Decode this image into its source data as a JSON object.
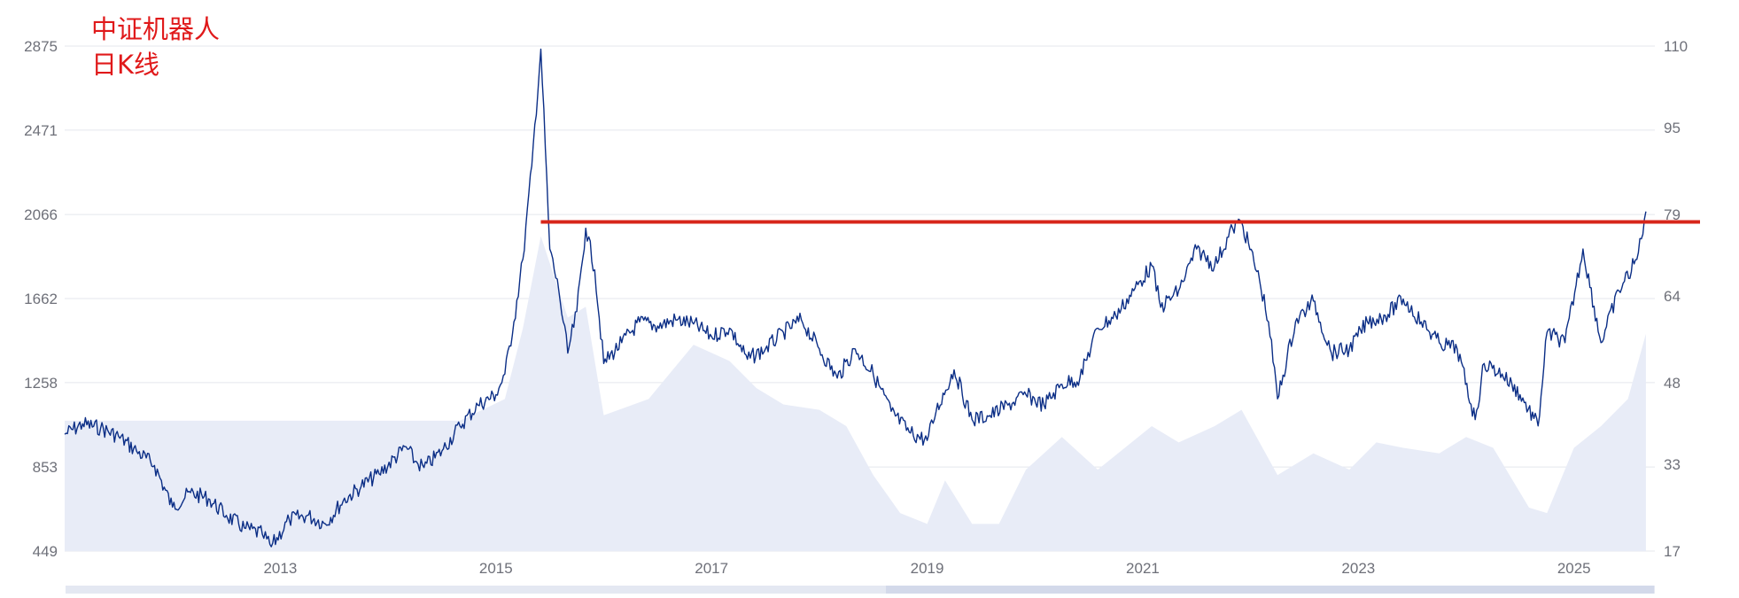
{
  "title_lines": [
    "中证机器人",
    "日K线"
  ],
  "colors": {
    "title": "#e0191a",
    "price_line": "#0b2e86",
    "resistance_line": "#d7261a",
    "volume_fill": "#e8ecf7",
    "grid": "#e4e7ee",
    "axis_text": "#6e7079",
    "scrollbar_track": "#e4e8f2",
    "scrollbar_handle": "#d3d9ea"
  },
  "chart_data": {
    "type": "line",
    "title": "中证机器人 日K线",
    "x_ticks": [
      "2013",
      "2015",
      "2017",
      "2019",
      "2021",
      "2023",
      "2025"
    ],
    "x_range": [
      "2011-01",
      "2025-10"
    ],
    "y_left_ticks": [
      449,
      853,
      1258,
      1662,
      2066,
      2471,
      2875
    ],
    "y_left_range": [
      449,
      2875
    ],
    "y_right_ticks": [
      17,
      33,
      48,
      64,
      79,
      95,
      110
    ],
    "y_right_range": [
      17,
      110
    ],
    "grid": true,
    "series": [
      {
        "type": "line",
        "points": [
          [
            "2011-01",
            1010
          ],
          [
            "2011-03",
            1060
          ],
          [
            "2011-05",
            1040
          ],
          [
            "2011-07",
            1000
          ],
          [
            "2011-09",
            930
          ],
          [
            "2011-11",
            860
          ],
          [
            "2012-01",
            660
          ],
          [
            "2012-03",
            730
          ],
          [
            "2012-05",
            700
          ],
          [
            "2012-07",
            620
          ],
          [
            "2012-09",
            560
          ],
          [
            "2012-11",
            530
          ],
          [
            "2012-12",
            470
          ],
          [
            "2013-02",
            600
          ],
          [
            "2013-04",
            620
          ],
          [
            "2013-06",
            580
          ],
          [
            "2013-08",
            690
          ],
          [
            "2013-10",
            760
          ],
          [
            "2013-12",
            820
          ],
          [
            "2014-03",
            950
          ],
          [
            "2014-04",
            880
          ],
          [
            "2014-05",
            850
          ],
          [
            "2014-07",
            930
          ],
          [
            "2014-09",
            1050
          ],
          [
            "2014-11",
            1150
          ],
          [
            "2015-01",
            1200
          ],
          [
            "2015-02",
            1300
          ],
          [
            "2015-03",
            1550
          ],
          [
            "2015-04",
            1850
          ],
          [
            "2015-05",
            2300
          ],
          [
            "2015-06",
            2860
          ],
          [
            "2015-07",
            1900
          ],
          [
            "2015-08",
            1700
          ],
          [
            "2015-09",
            1400
          ],
          [
            "2015-10",
            1600
          ],
          [
            "2015-11",
            2000
          ],
          [
            "2015-12",
            1800
          ],
          [
            "2016-01",
            1350
          ],
          [
            "2016-03",
            1450
          ],
          [
            "2016-05",
            1550
          ],
          [
            "2016-07",
            1530
          ],
          [
            "2016-09",
            1560
          ],
          [
            "2016-11",
            1540
          ],
          [
            "2017-01",
            1480
          ],
          [
            "2017-03",
            1520
          ],
          [
            "2017-05",
            1370
          ],
          [
            "2017-07",
            1420
          ],
          [
            "2017-09",
            1500
          ],
          [
            "2017-11",
            1560
          ],
          [
            "2018-01",
            1420
          ],
          [
            "2018-03",
            1280
          ],
          [
            "2018-05",
            1420
          ],
          [
            "2018-07",
            1300
          ],
          [
            "2018-09",
            1120
          ],
          [
            "2018-11",
            1020
          ],
          [
            "2019-01",
            980
          ],
          [
            "2019-02",
            1120
          ],
          [
            "2019-04",
            1320
          ],
          [
            "2019-06",
            1080
          ],
          [
            "2019-08",
            1100
          ],
          [
            "2019-10",
            1150
          ],
          [
            "2019-12",
            1200
          ],
          [
            "2020-02",
            1150
          ],
          [
            "2020-04",
            1250
          ],
          [
            "2020-06",
            1280
          ],
          [
            "2020-08",
            1520
          ],
          [
            "2020-10",
            1580
          ],
          [
            "2020-12",
            1700
          ],
          [
            "2021-02",
            1820
          ],
          [
            "2021-03",
            1620
          ],
          [
            "2021-05",
            1700
          ],
          [
            "2021-07",
            1900
          ],
          [
            "2021-09",
            1820
          ],
          [
            "2021-11",
            2000
          ],
          [
            "2021-12",
            2030
          ],
          [
            "2022-02",
            1750
          ],
          [
            "2022-03",
            1550
          ],
          [
            "2022-04",
            1180
          ],
          [
            "2022-06",
            1550
          ],
          [
            "2022-08",
            1650
          ],
          [
            "2022-10",
            1400
          ],
          [
            "2022-12",
            1420
          ],
          [
            "2023-02",
            1550
          ],
          [
            "2023-04",
            1580
          ],
          [
            "2023-06",
            1660
          ],
          [
            "2023-08",
            1550
          ],
          [
            "2023-10",
            1450
          ],
          [
            "2023-12",
            1420
          ],
          [
            "2024-02",
            1080
          ],
          [
            "2024-03",
            1350
          ],
          [
            "2024-05",
            1300
          ],
          [
            "2024-07",
            1200
          ],
          [
            "2024-09",
            1050
          ],
          [
            "2024-10",
            1500
          ],
          [
            "2024-12",
            1450
          ],
          [
            "2025-02",
            1900
          ],
          [
            "2025-04",
            1450
          ],
          [
            "2025-06",
            1700
          ],
          [
            "2025-08",
            1850
          ],
          [
            "2025-09",
            2080
          ]
        ]
      },
      {
        "type": "area",
        "axis": "right",
        "points": [
          [
            "2011-01",
            41
          ],
          [
            "2014-05",
            41
          ],
          [
            "2014-09",
            41
          ],
          [
            "2015-02",
            45
          ],
          [
            "2015-04",
            58
          ],
          [
            "2015-06",
            75
          ],
          [
            "2015-09",
            60
          ],
          [
            "2015-11",
            62
          ],
          [
            "2016-01",
            42
          ],
          [
            "2016-06",
            45
          ],
          [
            "2016-11",
            55
          ],
          [
            "2017-03",
            52
          ],
          [
            "2017-06",
            47
          ],
          [
            "2017-09",
            44
          ],
          [
            "2018-01",
            43
          ],
          [
            "2018-04",
            40
          ],
          [
            "2018-07",
            31
          ],
          [
            "2018-10",
            24
          ],
          [
            "2019-01",
            22
          ],
          [
            "2019-03",
            30
          ],
          [
            "2019-06",
            22
          ],
          [
            "2019-09",
            22
          ],
          [
            "2019-12",
            32
          ],
          [
            "2020-04",
            38
          ],
          [
            "2020-08",
            32
          ],
          [
            "2021-02",
            40
          ],
          [
            "2021-05",
            37
          ],
          [
            "2021-09",
            40
          ],
          [
            "2021-12",
            43
          ],
          [
            "2022-04",
            31
          ],
          [
            "2022-08",
            35
          ],
          [
            "2022-12",
            32
          ],
          [
            "2023-03",
            37
          ],
          [
            "2023-06",
            36
          ],
          [
            "2023-10",
            35
          ],
          [
            "2024-01",
            38
          ],
          [
            "2024-04",
            36
          ],
          [
            "2024-08",
            25
          ],
          [
            "2024-10",
            24
          ],
          [
            "2025-01",
            36
          ],
          [
            "2025-04",
            40
          ],
          [
            "2025-07",
            45
          ],
          [
            "2025-09",
            57
          ]
        ]
      }
    ],
    "reference_line": {
      "value": 2030,
      "from": "2015-06",
      "to": "2025-10"
    },
    "data_zoom": {
      "start": 0,
      "end": 100
    }
  }
}
